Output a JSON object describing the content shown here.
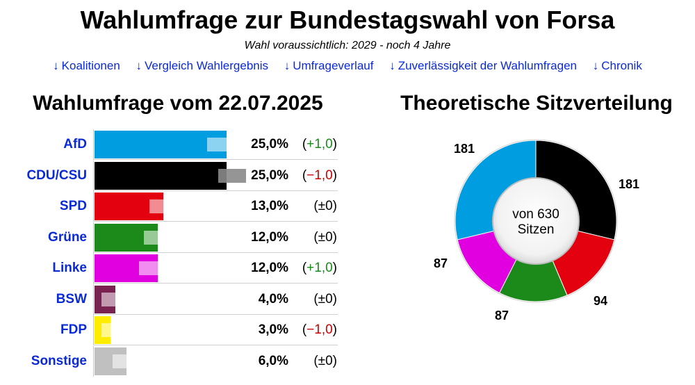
{
  "title": "Wahlumfrage zur Bundestagswahl von Forsa",
  "subtitle": "Wahl voraussichtlich: 2029 - noch 4 Jahre",
  "nav": [
    {
      "arrow": "↓",
      "label": "Koalitionen"
    },
    {
      "arrow": "↓",
      "label": "Vergleich Wahlergebnis"
    },
    {
      "arrow": "↓",
      "label": "Umfrageverlauf"
    },
    {
      "arrow": "↓",
      "label": "Zuverlässigkeit der Wahlumfragen"
    },
    {
      "arrow": "↓",
      "label": "Chronik"
    }
  ],
  "left_heading": "Wahlumfrage vom 22.07.2025",
  "right_heading": "Theoretische Sitzverteilung",
  "chart_data": [
    {
      "type": "bar",
      "title": "Wahlumfrage vom 22.07.2025",
      "orientation": "horizontal",
      "unit": "%",
      "categories": [
        "AfD",
        "CDU/CSU",
        "SPD",
        "Grüne",
        "Linke",
        "BSW",
        "FDP",
        "Sonstige"
      ],
      "values": [
        25.0,
        25.0,
        13.0,
        12.0,
        12.0,
        4.0,
        3.0,
        6.0
      ],
      "previous_values": [
        24.0,
        26.0,
        13.0,
        12.0,
        11.0,
        4.0,
        4.0,
        6.0
      ],
      "value_labels": [
        "25,0%",
        "25,0%",
        "13,0%",
        "12,0%",
        "12,0%",
        "4,0%",
        "3,0%",
        "6,0%"
      ],
      "changes": [
        {
          "open": "(",
          "num": "+1,0",
          "close": ")",
          "sign": "pos"
        },
        {
          "open": "(",
          "num": "−1,0",
          "close": ")",
          "sign": "neg"
        },
        {
          "open": "(",
          "num": "±0",
          "close": ")",
          "sign": "zero"
        },
        {
          "open": "(",
          "num": "±0",
          "close": ")",
          "sign": "zero"
        },
        {
          "open": "(",
          "num": "+1,0",
          "close": ")",
          "sign": "pos"
        },
        {
          "open": "(",
          "num": "±0",
          "close": ")",
          "sign": "zero"
        },
        {
          "open": "(",
          "num": "−1,0",
          "close": ")",
          "sign": "neg"
        },
        {
          "open": "(",
          "num": "±0",
          "close": ")",
          "sign": "zero"
        }
      ],
      "colors": [
        "#009ee0",
        "#000000",
        "#e3000f",
        "#1b8a1b",
        "#e000e0",
        "#7a2350",
        "#ffed00",
        "#c0c0c0"
      ],
      "xlim": [
        0,
        25
      ]
    },
    {
      "type": "pie",
      "title": "Theoretische Sitzverteilung",
      "donut": true,
      "center_line1": "von 630",
      "center_line2": "Sitzen",
      "slices": [
        {
          "party": "CDU/CSU",
          "seats": 181,
          "label": "181",
          "color": "#000000"
        },
        {
          "party": "SPD",
          "seats": 94,
          "label": "94",
          "color": "#e3000f"
        },
        {
          "party": "Grüne",
          "seats": 87,
          "label": "87",
          "color": "#1b8a1b"
        },
        {
          "party": "Linke",
          "seats": 87,
          "label": "87",
          "color": "#e000e0"
        },
        {
          "party": "AfD",
          "seats": 181,
          "label": "181",
          "color": "#009ee0"
        }
      ]
    }
  ]
}
